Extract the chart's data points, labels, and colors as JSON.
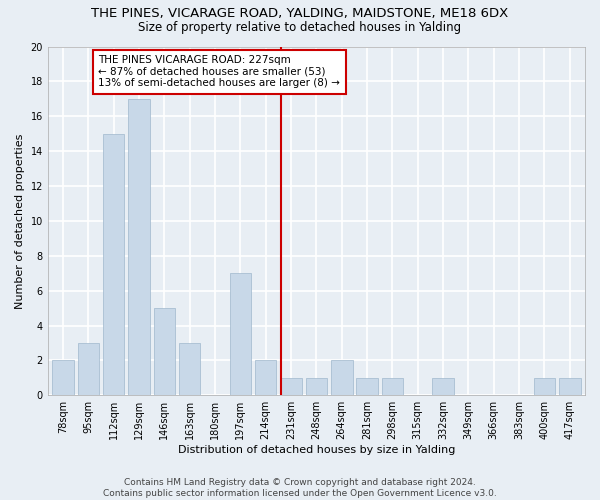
{
  "title": "THE PINES, VICARAGE ROAD, YALDING, MAIDSTONE, ME18 6DX",
  "subtitle": "Size of property relative to detached houses in Yalding",
  "xlabel": "Distribution of detached houses by size in Yalding",
  "ylabel": "Number of detached properties",
  "categories": [
    "78sqm",
    "95sqm",
    "112sqm",
    "129sqm",
    "146sqm",
    "163sqm",
    "180sqm",
    "197sqm",
    "214sqm",
    "231sqm",
    "248sqm",
    "264sqm",
    "281sqm",
    "298sqm",
    "315sqm",
    "332sqm",
    "349sqm",
    "366sqm",
    "383sqm",
    "400sqm",
    "417sqm"
  ],
  "values": [
    2,
    3,
    15,
    17,
    5,
    3,
    0,
    7,
    2,
    1,
    1,
    2,
    1,
    1,
    0,
    1,
    0,
    0,
    0,
    1,
    1
  ],
  "bar_color": "#c8d8e8",
  "bar_edgecolor": "#a0b8cc",
  "bar_width": 0.85,
  "ylim": [
    0,
    20
  ],
  "yticks": [
    0,
    2,
    4,
    6,
    8,
    10,
    12,
    14,
    16,
    18,
    20
  ],
  "vline_x_index": 8.62,
  "vline_color": "#cc0000",
  "ann_line1": "THE PINES VICARAGE ROAD: 227sqm",
  "ann_line2": "← 87% of detached houses are smaller (53)",
  "ann_line3": "13% of semi-detached houses are larger (8) →",
  "annotation_box_color": "#cc0000",
  "annotation_box_facecolor": "white",
  "footer_line1": "Contains HM Land Registry data © Crown copyright and database right 2024.",
  "footer_line2": "Contains public sector information licensed under the Open Government Licence v3.0.",
  "background_color": "#e8eef4",
  "grid_color": "white",
  "title_fontsize": 9.5,
  "subtitle_fontsize": 8.5,
  "xlabel_fontsize": 8,
  "ylabel_fontsize": 8,
  "tick_fontsize": 7,
  "ann_fontsize": 7.5,
  "footer_fontsize": 6.5
}
